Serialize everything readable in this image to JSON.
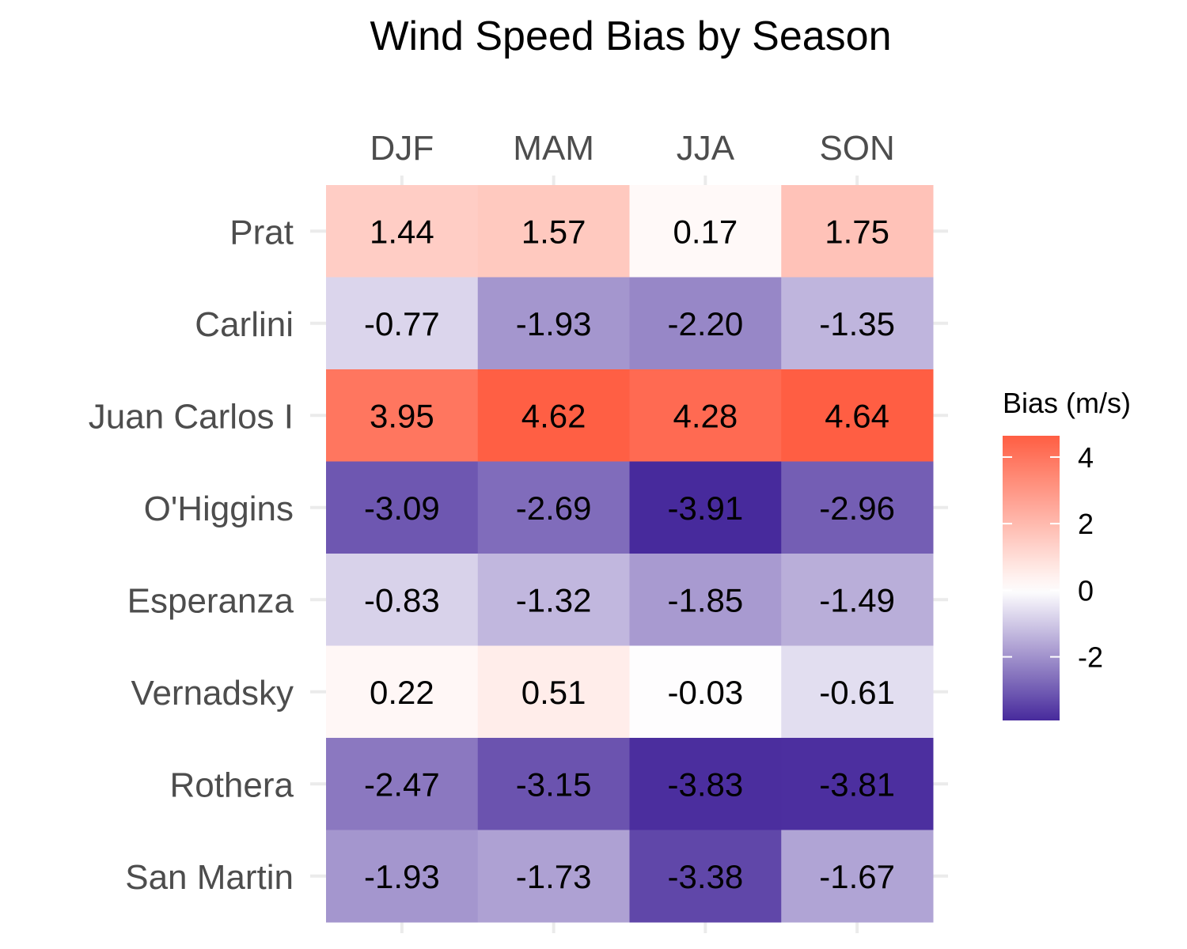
{
  "chart_data": {
    "type": "heatmap",
    "title": "Wind Speed Bias by Season",
    "columns": [
      "DJF",
      "MAM",
      "JJA",
      "SON"
    ],
    "rows": [
      "Prat",
      "Carlini",
      "Juan Carlos I",
      "O'Higgins",
      "Esperanza",
      "Vernadsky",
      "Rothera",
      "San Martin"
    ],
    "values": [
      [
        1.44,
        1.57,
        0.17,
        1.75
      ],
      [
        -0.77,
        -1.93,
        -2.2,
        -1.35
      ],
      [
        3.95,
        4.62,
        4.28,
        4.64
      ],
      [
        -3.09,
        -2.69,
        -3.91,
        -2.96
      ],
      [
        -0.83,
        -1.32,
        -1.85,
        -1.49
      ],
      [
        0.22,
        0.51,
        -0.03,
        -0.61
      ],
      [
        -2.47,
        -3.15,
        -3.83,
        -3.81
      ],
      [
        -1.93,
        -1.73,
        -3.38,
        -1.67
      ]
    ],
    "cell_labels": [
      [
        "1.44",
        "1.57",
        "0.17",
        "1.75"
      ],
      [
        "-0.77",
        "-1.93",
        "-2.20",
        "-1.35"
      ],
      [
        "3.95",
        "4.62",
        "4.28",
        "4.64"
      ],
      [
        "-3.09",
        "-2.69",
        "-3.91",
        "-2.96"
      ],
      [
        "-0.83",
        "-1.32",
        "-1.85",
        "-1.49"
      ],
      [
        "0.22",
        "0.51",
        "-0.03",
        "-0.61"
      ],
      [
        "-2.47",
        "-3.15",
        "-3.83",
        "-3.81"
      ],
      [
        "-1.93",
        "-1.73",
        "-3.38",
        "-1.67"
      ]
    ],
    "legend": {
      "title": "Bias (m/s)",
      "ticks": [
        4,
        2,
        0,
        -2
      ],
      "tick_labels": [
        "4",
        "2",
        "0",
        "-2"
      ],
      "range": [
        -3.91,
        4.64
      ],
      "placement": "right"
    },
    "colors": {
      "low": "#472a9c",
      "mid": "#ffffff",
      "high": "#ff5e43"
    },
    "grid": true
  }
}
